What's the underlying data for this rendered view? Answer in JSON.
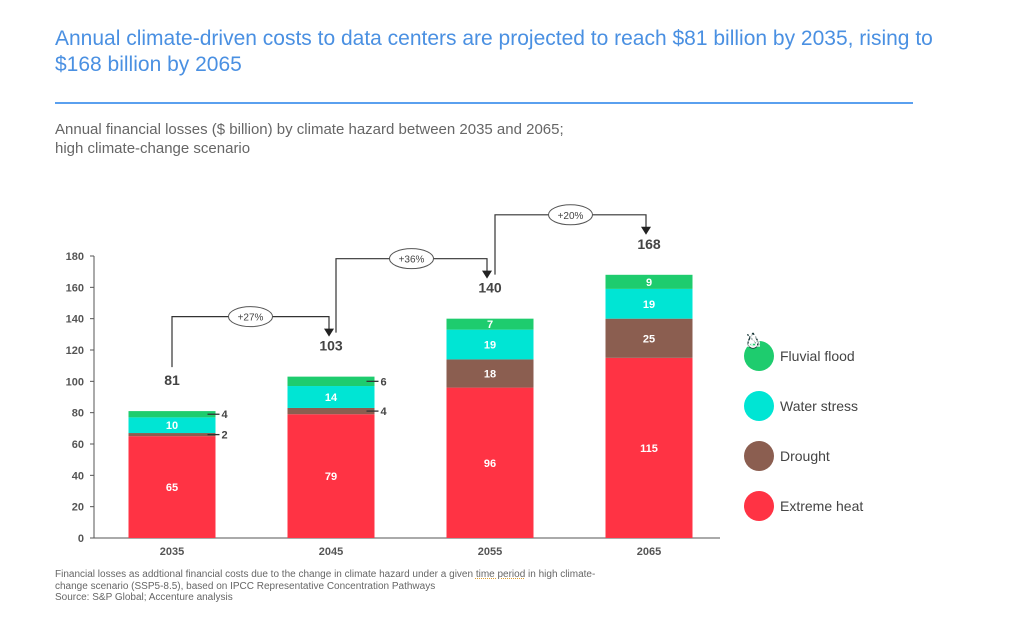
{
  "header": {
    "title": "Annual climate-driven costs to data centers are projected to reach $81 billion by 2035, rising to $168 billion by 2065",
    "subtitle_line1": "Annual financial losses ($ billion) by climate hazard between 2035 and 2065;",
    "subtitle_line2": "high climate-change scenario"
  },
  "footnote": {
    "line1_a": "Financial losses as addtional financial costs due to the change in climate hazard under a given ",
    "line1_b": "time period",
    "line1_c": " in high climate-",
    "line2": "change scenario (SSP5-8.5), based on IPCC Representative Concentration Pathways",
    "line3": "Source: S&P Global; Accenture analysis"
  },
  "chart_data": {
    "type": "bar",
    "stacked": true,
    "categories": [
      "2035",
      "2045",
      "2055",
      "2065"
    ],
    "ylim": [
      0,
      180
    ],
    "yticks": [
      0,
      20,
      40,
      60,
      80,
      100,
      120,
      140,
      160,
      180
    ],
    "grid": false,
    "legend_placement": "right",
    "series": [
      {
        "name": "Extreme heat",
        "color": "#ff3344",
        "icon": "thermometer-icon",
        "values": [
          65,
          79,
          96,
          115
        ]
      },
      {
        "name": "Drought",
        "color": "#8b5e50",
        "icon": "drought-icon",
        "values": [
          2,
          4,
          18,
          25
        ]
      },
      {
        "name": "Water stress",
        "color": "#00e5d4",
        "icon": "water-stress-icon",
        "values": [
          10,
          14,
          19,
          19
        ]
      },
      {
        "name": "Fluvial flood",
        "color": "#1ecc6e",
        "icon": "flood-icon",
        "values": [
          4,
          6,
          7,
          9
        ]
      }
    ],
    "totals": [
      81,
      103,
      140,
      168
    ],
    "growth_labels": [
      "+27%",
      "+36%",
      "+20%"
    ]
  }
}
